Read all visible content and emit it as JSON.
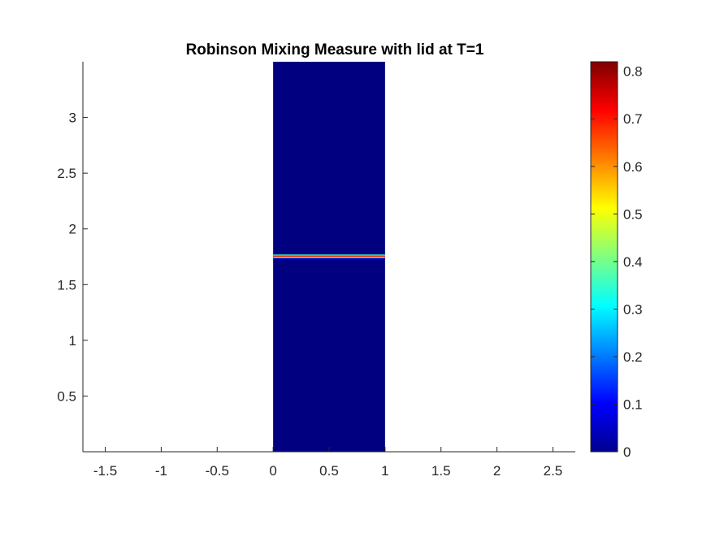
{
  "chart_data": {
    "type": "heatmap",
    "title": "Robinson Mixing Measure with lid at T=1",
    "xlabel": "",
    "ylabel": "",
    "xlim": [
      -1.7,
      2.7
    ],
    "ylim": [
      0,
      3.5
    ],
    "x_ticks": [
      -1.5,
      -1,
      -0.5,
      0,
      0.5,
      1,
      1.5,
      2,
      2.5
    ],
    "x_tick_labels": [
      "-1.5",
      "-1",
      "-0.5",
      "0",
      "0.5",
      "1",
      "1.5",
      "2",
      "2.5"
    ],
    "y_ticks": [
      0.5,
      1,
      1.5,
      2,
      2.5,
      3
    ],
    "y_tick_labels": [
      "0.5",
      "1",
      "1.5",
      "2",
      "2.5",
      "3"
    ],
    "domain": {
      "x": [
        0,
        1
      ],
      "y": [
        0,
        3.5
      ]
    },
    "background_value": 0,
    "bands": [
      {
        "y_min": 1.73,
        "y_max": 1.77,
        "peak_value": 0.82
      }
    ],
    "colormap": "jet",
    "colorbar": {
      "range": [
        0,
        0.82
      ],
      "ticks": [
        0,
        0.1,
        0.2,
        0.3,
        0.4,
        0.5,
        0.6,
        0.7,
        0.8
      ],
      "tick_labels": [
        "0",
        "0.1",
        "0.2",
        "0.3",
        "0.4",
        "0.5",
        "0.6",
        "0.7",
        "0.8"
      ]
    },
    "grid": false,
    "colors": {
      "low": "#00008f",
      "high": "#800000",
      "axis": "#262626"
    }
  }
}
